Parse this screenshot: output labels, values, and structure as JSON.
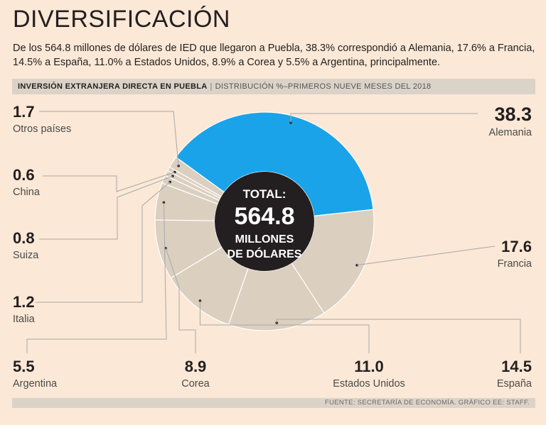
{
  "title": "DIVERSIFICACIÓN",
  "subtitle": "De los 564.8 millones de dólares de IED que llegaron a Puebla, 38.3% correspondió a Alemania, 17.6% a Francia, 14.5% a España, 11.0% a Estados Unidos, 8.9% a Corea y 5.5% a Argentina, principalmente.",
  "chart_header": {
    "bold": "INVERSIÓN EXTRANJERA DIRECTA EN PUEBLA",
    "separator": "|",
    "light": "DISTRIBUCIÓN %–PRIMEROS NUEVE MESES DEL 2018"
  },
  "center": {
    "line1": "TOTAL:",
    "line2": "564.8",
    "line3": "MILLONES",
    "line4": "DE DÓLARES"
  },
  "footer": "FUENTE: SECRETARÍA DE ECONOMÍA. GRÁFICO EE: STAFF.",
  "colors": {
    "background": "#fbe8d6",
    "highlight": "#1aa3e8",
    "segment": "#dbcfc0",
    "center": "#231f20",
    "leader": "#a8a8a8"
  },
  "chart_data": {
    "type": "pie",
    "title": "Inversión extranjera directa en Puebla",
    "unit": "%",
    "total": 564.8,
    "slices": [
      {
        "label": "Alemania",
        "value": 38.3,
        "display": "38.3"
      },
      {
        "label": "Francia",
        "value": 17.6,
        "display": "17.6"
      },
      {
        "label": "España",
        "value": 14.5,
        "display": "14.5"
      },
      {
        "label": "Estados Unidos",
        "value": 11.0,
        "display": "11.0"
      },
      {
        "label": "Corea",
        "value": 8.9,
        "display": "8.9"
      },
      {
        "label": "Argentina",
        "value": 5.5,
        "display": "5.5"
      },
      {
        "label": "Italia",
        "value": 1.2,
        "display": "1.2"
      },
      {
        "label": "Suiza",
        "value": 0.8,
        "display": "0.8"
      },
      {
        "label": "China",
        "value": 0.6,
        "display": "0.6"
      },
      {
        "label": "Otros países",
        "value": 1.7,
        "display": "1.7"
      }
    ]
  }
}
